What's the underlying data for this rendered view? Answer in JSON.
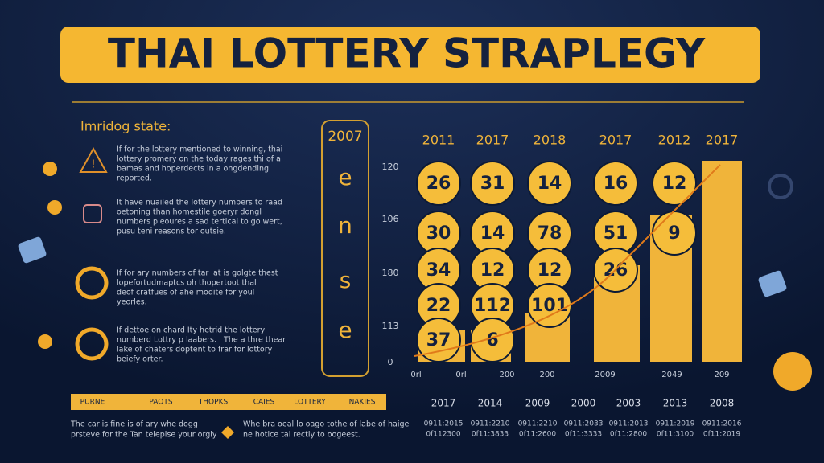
{
  "header": {
    "title": "THAI LOTTERY STRAPLEGY"
  },
  "sidebar": {
    "heading": "Imridog state:",
    "items": [
      {
        "lines": [
          "If for the lottery mentioned to winning, thai",
          "lottery promery on the today rages thi of a",
          "bamas and hoperdects in a ongdending",
          "reported."
        ]
      },
      {
        "lines": [
          "It have nuailed the lottery numbers to raad",
          "oetoning than homestile goeryr dongl",
          "numbers pleoures a sad tertical to go wert,",
          "pusu teni reasons tor outsie."
        ]
      },
      {
        "lines": [
          "If for ary numbers of tar lat is golgte thest",
          "lopefortudmaptcs oh thopertoot thal",
          "deof cratfues of ahe modite for youl",
          "yeorles."
        ]
      },
      {
        "lines": [
          "If dettoe on chard Ity hetrid the lottery",
          "numberd Lottry p laabers. . The a thre thear",
          "lake of chaters doptent to frar for lottory",
          "beiefy orter."
        ]
      }
    ]
  },
  "panel": {
    "label": "2007",
    "letters": [
      "e",
      "n",
      "s",
      "e"
    ]
  },
  "axis_labels": [
    "120",
    "106",
    "180",
    "113",
    "0"
  ],
  "columns": [
    {
      "year": "2011",
      "numbers": [
        26,
        30,
        34,
        22,
        37
      ],
      "x_label": "0rl"
    },
    {
      "year": "2017",
      "numbers": [
        31,
        14,
        12,
        112,
        6
      ],
      "x_label": "0rl"
    },
    {
      "year": "2018",
      "numbers": [
        14,
        78,
        12,
        101
      ],
      "x_label": "200"
    },
    {
      "year": "2017",
      "numbers": [
        16,
        51,
        26
      ],
      "x_label": "200"
    },
    {
      "year": "2012",
      "numbers": [
        12,
        9
      ],
      "x_label": "2009"
    },
    {
      "year": "2017",
      "numbers": [],
      "x_label": "2049"
    }
  ],
  "last_x_label": "209",
  "strip": [
    "PURNE",
    "PAOTS",
    "THOPKS",
    "CAIES",
    "LOTTERY",
    "NAKIES"
  ],
  "footer_columns": [
    {
      "year": "2017",
      "codes": [
        "0911:2015",
        "0f112300"
      ]
    },
    {
      "year": "2014",
      "codes": [
        "0911:2210",
        "0f11:3833"
      ]
    },
    {
      "year": "2009",
      "codes": [
        "0911:2210",
        "0f11:2600"
      ]
    },
    {
      "year": "2000",
      "codes": [
        "0911:2033",
        "0f11:3333"
      ]
    },
    {
      "year": "2003",
      "codes": [
        "0911:2013",
        "0f11:2800"
      ]
    },
    {
      "year": "2013",
      "codes": [
        "0911:2019",
        "0f11:3100"
      ]
    },
    {
      "year": "2008",
      "codes": [
        "0911:2016",
        "0f11:2019"
      ]
    }
  ],
  "notes": [
    {
      "lines": [
        "The car is fine is of ary whe dogg",
        "prsteve for the Tan telepise your orgly"
      ]
    },
    {
      "lines": [
        "Whe bra oeal lo oago tothe of labe of haige",
        "ne hotice tal rectly to oogeest."
      ]
    }
  ]
}
